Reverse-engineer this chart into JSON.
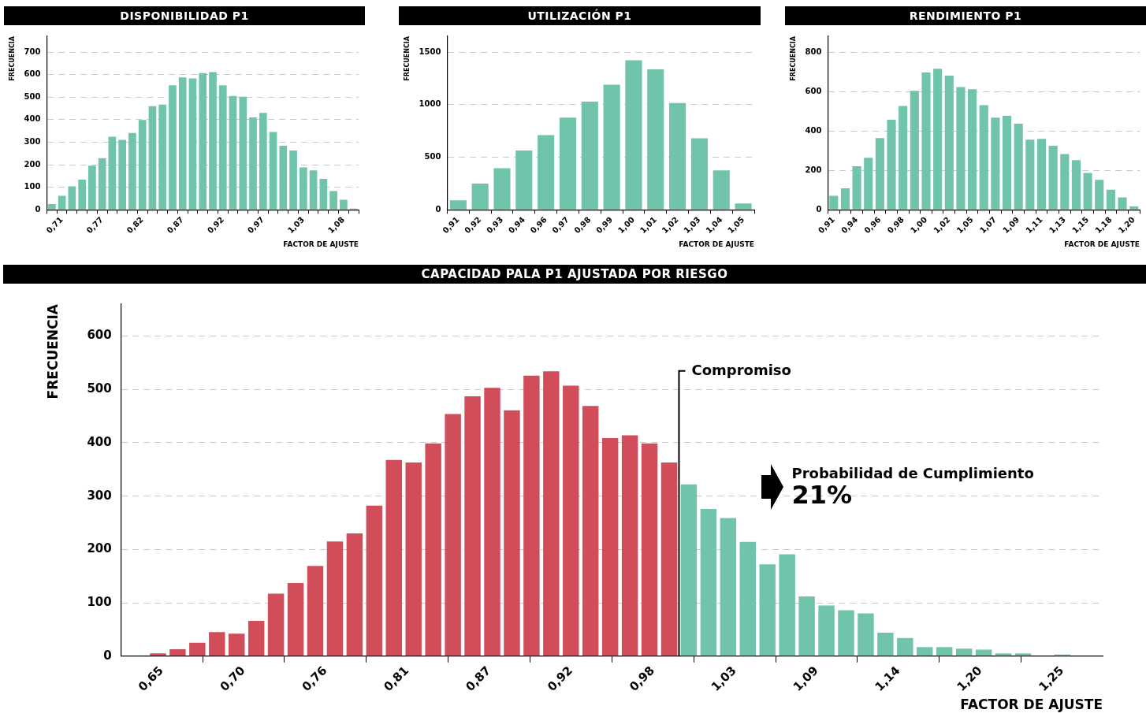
{
  "chart_data": [
    {
      "type": "bar",
      "title": "DISPONIBILIDAD P1",
      "xlabel": "FACTOR DE AJUSTE",
      "ylabel": "FRECUENCIA",
      "color": "#6fc4ab",
      "grid": "y",
      "ylim": [
        0,
        770
      ],
      "yticks": [
        0,
        100,
        200,
        300,
        400,
        500,
        600,
        700
      ],
      "categories": [
        null,
        "0,71",
        null,
        null,
        null,
        "0,77",
        null,
        null,
        null,
        "0,82",
        null,
        null,
        null,
        "0,87",
        null,
        null,
        null,
        "0,92",
        null,
        null,
        null,
        "0,97",
        null,
        null,
        null,
        "1,03",
        null,
        null,
        null,
        "1,08",
        null
      ],
      "values": [
        25,
        62,
        104,
        134,
        196,
        229,
        324,
        310,
        341,
        399,
        460,
        467,
        552,
        587,
        583,
        607,
        611,
        552,
        505,
        502,
        410,
        430,
        345,
        284,
        263,
        188,
        175,
        137,
        83,
        45,
        5
      ]
    },
    {
      "type": "bar",
      "title": "UTILIZACIÓN P1",
      "xlabel": "FACTOR DE AJUSTE",
      "ylabel": "FRECUENCIA",
      "color": "#6fc4ab",
      "grid": "y",
      "ylim": [
        0,
        1650
      ],
      "yticks": [
        0,
        500,
        1000,
        1500
      ],
      "categories": [
        "0,91",
        "0,92",
        "0,93",
        "0,94",
        "0,96",
        "0,97",
        "0,98",
        "0,99",
        "1,00",
        "1,01",
        "1,02",
        "1,03",
        "1,04",
        "1,05"
      ],
      "values": [
        90,
        250,
        396,
        563,
        709,
        876,
        1029,
        1189,
        1422,
        1335,
        1015,
        680,
        374,
        61
      ]
    },
    {
      "type": "bar",
      "title": "RENDIMIENTO P1",
      "xlabel": "FACTOR DE AJUSTE",
      "ylabel": "FRECUENCIA",
      "color": "#6fc4ab",
      "grid": "y",
      "ylim": [
        0,
        880
      ],
      "yticks": [
        0,
        200,
        400,
        600,
        800
      ],
      "categories": [
        "0,91",
        null,
        "0,94",
        null,
        "0,96",
        null,
        "0,98",
        null,
        "1,00",
        null,
        "1,02",
        null,
        "1,05",
        null,
        "1,07",
        null,
        "1,09",
        null,
        "1,11",
        null,
        "1,13",
        null,
        "1,15",
        null,
        "1,18",
        null,
        "1,20"
      ],
      "values": [
        71,
        109,
        221,
        264,
        364,
        457,
        526,
        603,
        696,
        715,
        680,
        622,
        611,
        530,
        468,
        476,
        437,
        356,
        360,
        325,
        283,
        252,
        187,
        152,
        102,
        63,
        17
      ]
    },
    {
      "type": "histogram",
      "title": "CAPACIDAD PALA P1 AJUSTADA POR RIESGO",
      "xlabel": "FACTOR DE AJUSTE",
      "ylabel": "FRECUENCIA",
      "grid": "y",
      "ylim": [
        0,
        660
      ],
      "yticks": [
        0,
        100,
        200,
        300,
        400,
        500,
        600
      ],
      "xlim": [
        0.623,
        1.277
      ],
      "xticks": [
        {
          "value": 0.65,
          "label": "0,65"
        },
        {
          "value": 0.7045,
          "label": "0,70"
        },
        {
          "value": 0.7591,
          "label": "0,76"
        },
        {
          "value": 0.8136,
          "label": "0,81"
        },
        {
          "value": 0.8682,
          "label": "0,87"
        },
        {
          "value": 0.9227,
          "label": "0,92"
        },
        {
          "value": 0.9773,
          "label": "0,98"
        },
        {
          "value": 1.0318,
          "label": "1,03"
        },
        {
          "value": 1.0864,
          "label": "1,09"
        },
        {
          "value": 1.1409,
          "label": "1,14"
        },
        {
          "value": 1.1955,
          "label": "1,20"
        },
        {
          "value": 1.25,
          "label": "1,25"
        }
      ],
      "bins": [
        0.641,
        0.6541,
        0.6672,
        0.6803,
        0.6934,
        0.7065,
        0.7196,
        0.7327,
        0.7458,
        0.7589,
        0.772,
        0.7851,
        0.7982,
        0.8113,
        0.8244,
        0.8375,
        0.8506,
        0.8637,
        0.8768,
        0.8899,
        0.903,
        0.9161,
        0.9292,
        0.9423,
        0.9554,
        0.9685,
        0.9816,
        0.9947,
        1.0078,
        1.0209,
        1.034,
        1.0471,
        1.0602,
        1.0733,
        1.0864,
        1.0995,
        1.1126,
        1.1257,
        1.1388,
        1.1519,
        1.165,
        1.1781,
        1.1912,
        1.2043,
        1.2174,
        1.2305,
        1.2436,
        1.2567
      ],
      "values": [
        5,
        13,
        25,
        45,
        42,
        66,
        117,
        137,
        169,
        215,
        230,
        282,
        368,
        363,
        399,
        454,
        487,
        503,
        461,
        526,
        534,
        507,
        469,
        409,
        414,
        399,
        363,
        322,
        276,
        259,
        214,
        172,
        191,
        112,
        95,
        86,
        80,
        44,
        34,
        17,
        17,
        14,
        12,
        5,
        5,
        null,
        3
      ],
      "colors": [
        "#d14d5a",
        "#d14d5a",
        "#d14d5a",
        "#d14d5a",
        "#d14d5a",
        "#d14d5a",
        "#d14d5a",
        "#d14d5a",
        "#d14d5a",
        "#d14d5a",
        "#d14d5a",
        "#d14d5a",
        "#d14d5a",
        "#d14d5a",
        "#d14d5a",
        "#d14d5a",
        "#d14d5a",
        "#d14d5a",
        "#d14d5a",
        "#d14d5a",
        "#d14d5a",
        "#d14d5a",
        "#d14d5a",
        "#d14d5a",
        "#d14d5a",
        "#d14d5a",
        "#d14d5a",
        "#6fc4ab",
        "#6fc4ab",
        "#6fc4ab",
        "#6fc4ab",
        "#6fc4ab",
        "#6fc4ab",
        "#6fc4ab",
        "#6fc4ab",
        "#6fc4ab",
        "#6fc4ab",
        "#6fc4ab",
        "#6fc4ab",
        "#6fc4ab",
        "#6fc4ab",
        "#6fc4ab",
        "#6fc4ab",
        "#6fc4ab",
        "#6fc4ab",
        "#6fc4ab",
        "#6fc4ab"
      ],
      "ref_lines": [
        {
          "axis": "x",
          "value": 0.9947,
          "label": "Compromiso",
          "color": "#000000"
        }
      ],
      "annotations": [
        "Probabilidad de Cumplimiento",
        "21%"
      ]
    }
  ]
}
